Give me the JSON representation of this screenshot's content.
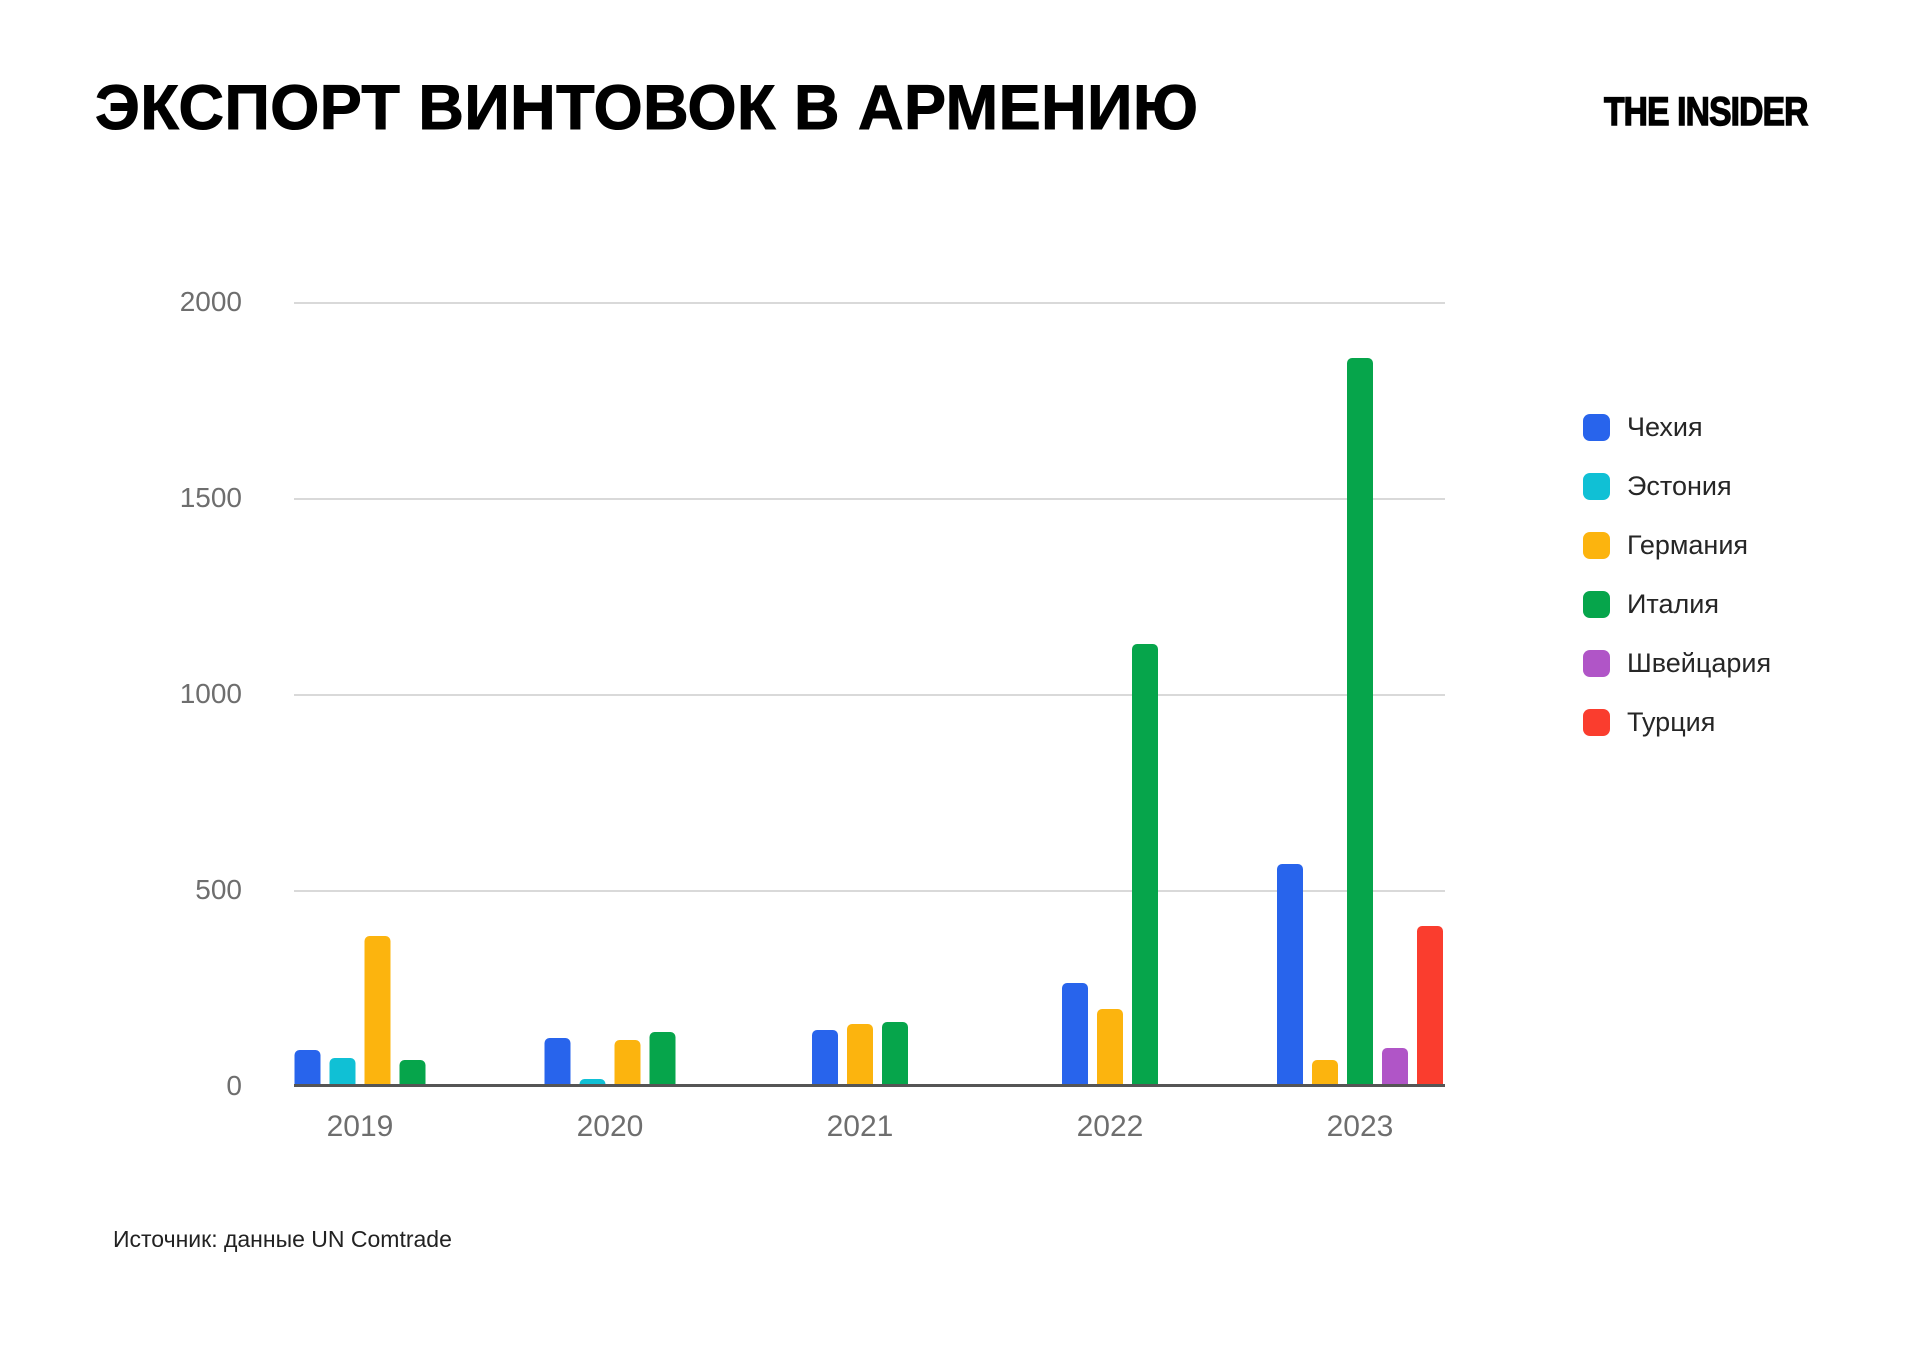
{
  "page": {
    "title": "ЭКСПОРТ ВИНТОВОК В АРМЕНИЮ",
    "logo": "THE INSIDER",
    "source": "Источник: данные UN Comtrade"
  },
  "chart_data": {
    "type": "bar",
    "title": "ЭКСПОРТ ВИНТОВОК В АРМЕНИЮ",
    "categories": [
      "2019",
      "2020",
      "2021",
      "2022",
      "2023"
    ],
    "series": [
      {
        "name": "Чехия",
        "color": "#2864EC",
        "values": [
          90,
          120,
          140,
          260,
          565
        ]
      },
      {
        "name": "Эстония",
        "color": "#10C0D5",
        "values": [
          70,
          15,
          0,
          0,
          0
        ]
      },
      {
        "name": "Германия",
        "color": "#FCB40E",
        "values": [
          380,
          115,
          155,
          195,
          65
        ]
      },
      {
        "name": "Италия",
        "color": "#06A54B",
        "values": [
          65,
          135,
          160,
          1125,
          1855
        ]
      },
      {
        "name": "Швейцария",
        "color": "#B055C7",
        "values": [
          0,
          0,
          0,
          0,
          95
        ]
      },
      {
        "name": "Турция",
        "color": "#FA3D2E",
        "values": [
          0,
          0,
          0,
          0,
          405
        ]
      }
    ],
    "ylim": [
      0,
      2000
    ],
    "yticks": [
      0,
      500,
      1000,
      1500,
      2000
    ],
    "ytick_labels": [
      "0",
      "500",
      "1000",
      "1500",
      "2000"
    ],
    "grid": true,
    "legend_position": "right",
    "zero_bars_hidden": true,
    "source": "Источник: данные UN Comtrade"
  }
}
